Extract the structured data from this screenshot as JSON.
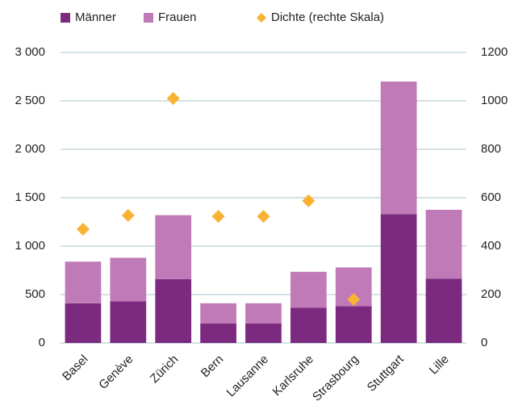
{
  "chart_data": {
    "type": "stacked_bar_with_scatter",
    "categories": [
      "Basel",
      "Genève",
      "Zürich",
      "Bern",
      "Lausanne",
      "Karlsruhe",
      "Strasbourg",
      "Stuttgart",
      "Lille"
    ],
    "series": [
      {
        "name": "Männer",
        "color": "#7b2a7f",
        "values": [
          410,
          430,
          660,
          200,
          200,
          365,
          380,
          1330,
          665
        ]
      },
      {
        "name": "Frauen",
        "color": "#c07ab8",
        "values": [
          430,
          450,
          660,
          210,
          210,
          370,
          400,
          1370,
          710
        ]
      },
      {
        "name": "Dichte (rechte Skala)",
        "color": "#f9b233",
        "axis": "y2",
        "values": [
          470,
          527,
          1010,
          523,
          523,
          587,
          180,
          null,
          null
        ]
      }
    ],
    "ylim": [
      0,
      3000
    ],
    "yticks": [
      0,
      500,
      {
        "value": 1000,
        "label": "1 000"
      },
      {
        "value": 1500,
        "label": "1 500"
      },
      {
        "value": 2000,
        "label": "2 000"
      },
      {
        "value": 2500,
        "label": "2 500"
      },
      {
        "value": 3000,
        "label": "3 000"
      }
    ],
    "y2lim": [
      0,
      1200
    ],
    "y2ticks": [
      0,
      200,
      400,
      600,
      800,
      1000,
      1200
    ],
    "grid": true
  }
}
